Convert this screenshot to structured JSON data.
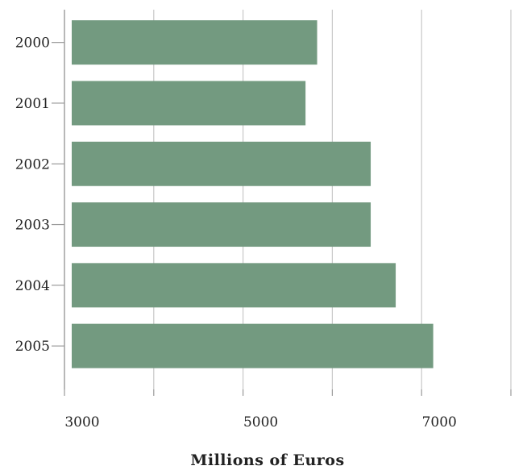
{
  "chart_data": {
    "type": "bar",
    "orientation": "horizontal",
    "categories": [
      "2000",
      "2001",
      "2002",
      "2003",
      "2004",
      "2005"
    ],
    "values": [
      5830,
      5700,
      6430,
      6430,
      6710,
      7130
    ],
    "xlabel": "Millions of Euros",
    "ylabel": "",
    "xlim": [
      3000,
      8000
    ],
    "xticks": [
      3000,
      4000,
      5000,
      6000,
      7000,
      8000
    ],
    "xtick_labels": [
      "3000",
      "",
      "5000",
      "",
      "7000",
      ""
    ],
    "grid": true,
    "bar_color": "#739a80"
  }
}
